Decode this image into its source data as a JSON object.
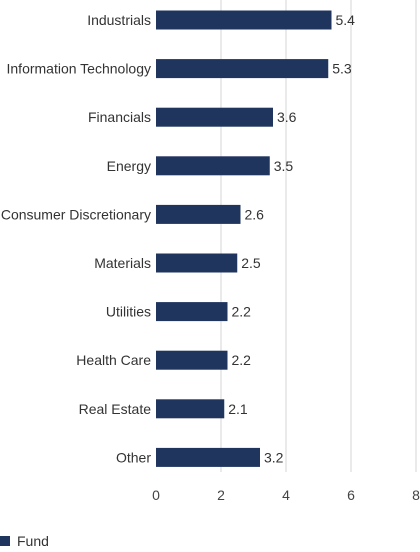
{
  "chart_data": {
    "type": "bar",
    "orientation": "horizontal",
    "categories": [
      "Industrials",
      "Information Technology",
      "Financials",
      "Energy",
      "Consumer Discretionary",
      "Materials",
      "Utilities",
      "Health Care",
      "Real Estate",
      "Other"
    ],
    "series": [
      {
        "name": "Fund",
        "values": [
          5.4,
          5.3,
          3.6,
          3.5,
          2.6,
          2.5,
          2.2,
          2.2,
          2.1,
          3.2
        ],
        "color": "#1f355e"
      }
    ],
    "data_labels": [
      "5.4",
      "5.3",
      "3.6",
      "3.5",
      "2.6",
      "2.5",
      "2.2",
      "2.2",
      "2.1",
      "3.2"
    ],
    "xticks": [
      "0",
      "2",
      "4",
      "6",
      "8"
    ],
    "xlim": [
      0,
      8
    ],
    "grid": "vertical",
    "legend": {
      "position": "bottom-left",
      "entries": [
        "Fund"
      ]
    },
    "title": "",
    "xlabel": "",
    "ylabel": ""
  },
  "colors": {
    "bar": "#1f355e",
    "grid": "#e3e3e3",
    "text": "#333333"
  }
}
